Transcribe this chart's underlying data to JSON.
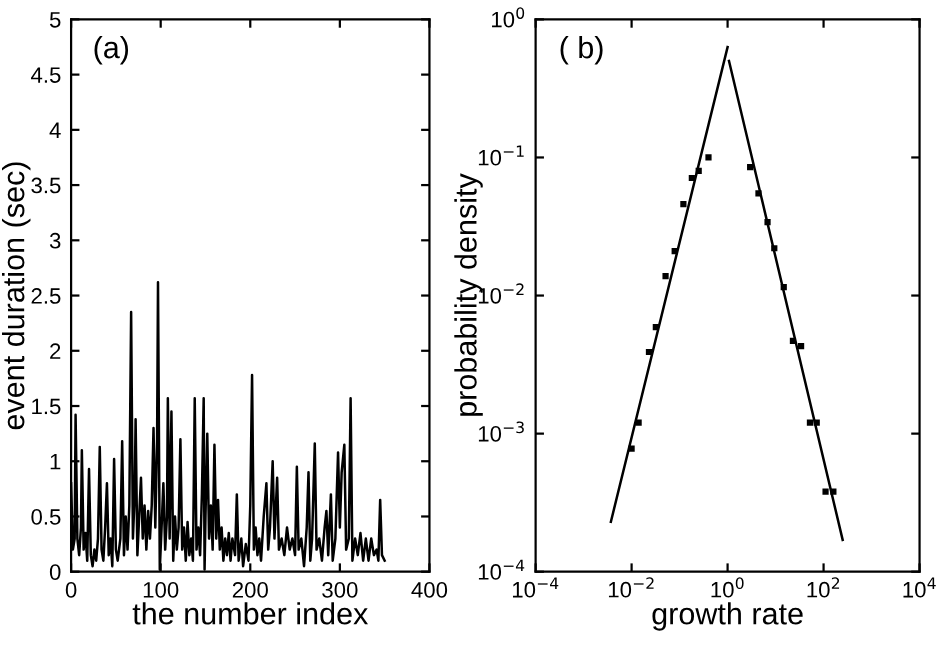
{
  "chart_data": [
    {
      "type": "line",
      "xlabel": "the number index",
      "ylabel": "event duration (sec)",
      "annotations": [
        "(a)"
      ],
      "xlim": [
        0,
        400
      ],
      "ylim": [
        0,
        5
      ],
      "xticks": [
        0,
        100,
        200,
        300,
        400
      ],
      "yticks": [
        0,
        0.5,
        1,
        1.5,
        2,
        2.5,
        3,
        3.5,
        4,
        4.5,
        5
      ],
      "grid": false,
      "series": [
        {
          "color": "#000000",
          "x": [
            0,
            2,
            4,
            5,
            7,
            9,
            11,
            12,
            14,
            16,
            18,
            20,
            22,
            24,
            26,
            28,
            30,
            32,
            34,
            36,
            38,
            40,
            42,
            44,
            46,
            48,
            50,
            52,
            55,
            57,
            59,
            61,
            63,
            65,
            67,
            69,
            71,
            72,
            74,
            76,
            78,
            80,
            82,
            84,
            86,
            88,
            90,
            92,
            94,
            96,
            97,
            99,
            101,
            103,
            105,
            107,
            108,
            110,
            112,
            114,
            116,
            118,
            120,
            122,
            124,
            126,
            128,
            130,
            132,
            134,
            136,
            138,
            140,
            142,
            144,
            146,
            148,
            149,
            150,
            152,
            154,
            156,
            158,
            160,
            162,
            164,
            166,
            168,
            170,
            172,
            174,
            176,
            178,
            180,
            183,
            185,
            187,
            190,
            192,
            195,
            198,
            200,
            202,
            204,
            206,
            208,
            210,
            212,
            215,
            218,
            220,
            222,
            225,
            227,
            230,
            232,
            235,
            238,
            241,
            244,
            247,
            250,
            252,
            254,
            257,
            260,
            263,
            265,
            267,
            269,
            272,
            274,
            277,
            280,
            283,
            285,
            287,
            290,
            292,
            295,
            298,
            300,
            302,
            305,
            307,
            310,
            312,
            314,
            317,
            320,
            323,
            326,
            329,
            332,
            335,
            338,
            341,
            343,
            345,
            347,
            350
          ],
          "values": [
            0.8,
            0.2,
            0.3,
            1.42,
            0.3,
            0.15,
            0.4,
            1.1,
            0.2,
            0.35,
            0.1,
            0.93,
            0.15,
            0.05,
            0.2,
            0.1,
            0.3,
            1.13,
            0.2,
            0.1,
            0.4,
            0.8,
            0.15,
            0.3,
            0.05,
            1.02,
            0.2,
            0.1,
            0.3,
            1.18,
            0.15,
            0.5,
            0.2,
            0.6,
            2.35,
            0.3,
            0.7,
            1.38,
            0.15,
            0.5,
            0.85,
            0.3,
            0.6,
            0.2,
            0.55,
            0.3,
            0.6,
            1.3,
            0.4,
            1.2,
            2.62,
            0.02,
            0.4,
            0.8,
            0.2,
            0.5,
            1.57,
            0.3,
            1.45,
            0.1,
            0.5,
            0.2,
            0.4,
            1.2,
            0.2,
            0.4,
            0.1,
            0.45,
            0.15,
            0.3,
            0.1,
            1.57,
            0.2,
            0.4,
            0.15,
            0.7,
            1.57,
            0.02,
            0.5,
            1.25,
            0.3,
            0.6,
            0.2,
            1.15,
            0.3,
            0.65,
            0.2,
            0.4,
            0.1,
            0.3,
            0.15,
            0.35,
            0.1,
            0.3,
            0.15,
            0.7,
            0.1,
            0.3,
            0.05,
            0.25,
            0.1,
            0.6,
            1.78,
            0.2,
            0.4,
            0.15,
            0.3,
            0.1,
            0.5,
            0.8,
            0.2,
            0.4,
            1.0,
            0.3,
            0.85,
            0.2,
            0.3,
            0.15,
            0.4,
            0.2,
            0.3,
            0.15,
            0.95,
            0.2,
            0.3,
            0.05,
            0.4,
            0.9,
            0.1,
            0.3,
            1.16,
            0.2,
            0.3,
            0.1,
            0.4,
            0.55,
            0.15,
            0.7,
            0.1,
            0.3,
            1.08,
            0.4,
            0.9,
            1.15,
            0.2,
            0.3,
            1.57,
            0.1,
            0.3,
            0.15,
            0.35,
            0.1,
            0.3,
            0.1,
            0.3,
            0.15,
            0.2,
            0.1,
            0.65,
            0.15,
            0.1
          ]
        }
      ]
    },
    {
      "type": "scatter",
      "xlabel": "growth rate",
      "ylabel": "probability density",
      "annotations": [
        "( b)"
      ],
      "log": "xy",
      "grid": false,
      "xlim": [
        0.0001,
        10000
      ],
      "ylim": [
        0.0001,
        1
      ],
      "xticks": [
        {
          "value": 0.0001,
          "label": "10$^{−4}$"
        },
        {
          "value": 0.01,
          "label": "10$^{−2}$"
        },
        {
          "value": 1,
          "label": "10$^{0}$"
        },
        {
          "value": 100,
          "label": "10$^{2}$"
        },
        {
          "value": 10000,
          "label": "10$^{4}$"
        }
      ],
      "yticks": [
        {
          "value": 0.0001,
          "label": "10$^{−4}$"
        },
        {
          "value": 0.001,
          "label": "10$^{−3}$"
        },
        {
          "value": 0.01,
          "label": "10$^{−2}$"
        },
        {
          "value": 0.1,
          "label": "10$^{−1}$"
        },
        {
          "value": 1,
          "label": "10$^{0}$"
        }
      ],
      "series": [
        {
          "type": "scatter",
          "marker": "square",
          "color": "#000000",
          "x": [
            0.01,
            0.014,
            0.023,
            0.032,
            0.051,
            0.079,
            0.12,
            0.18,
            0.25,
            0.4,
            2.95,
            4.4,
            6.8,
            9.4,
            14.8,
            23,
            34,
            52,
            72,
            110,
            160
          ],
          "values": [
            0.00078,
            0.0012,
            0.0039,
            0.0059,
            0.0138,
            0.021,
            0.046,
            0.071,
            0.08,
            0.1,
            0.085,
            0.055,
            0.034,
            0.022,
            0.0115,
            0.0047,
            0.0043,
            0.0012,
            0.0012,
            0.00038,
            0.00038
          ]
        },
        {
          "type": "line",
          "color": "#000000",
          "x": [
            0.0037,
            1
          ],
          "values": [
            0.00023,
            0.63
          ]
        },
        {
          "type": "line",
          "color": "#000000",
          "x": [
            1.07,
            250
          ],
          "values": [
            0.5,
            0.00017
          ]
        }
      ]
    }
  ]
}
